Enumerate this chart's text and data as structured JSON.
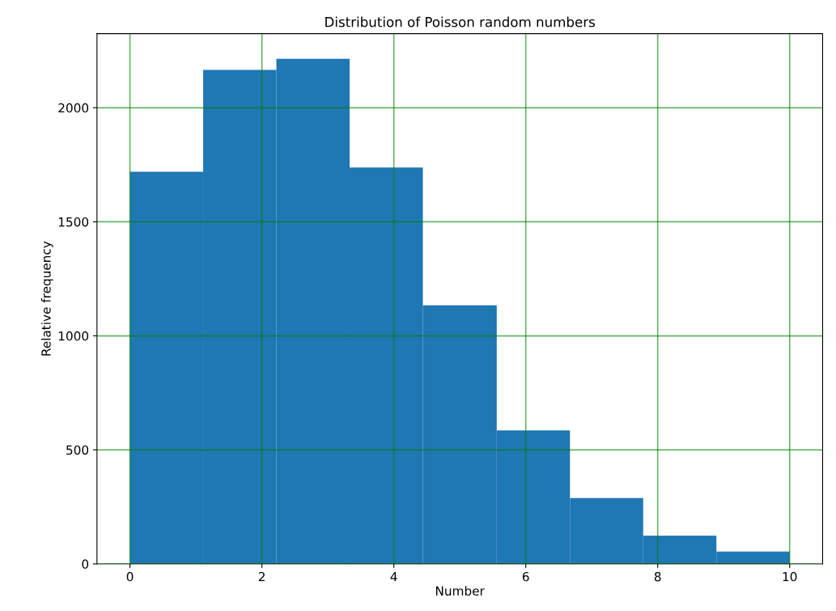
{
  "chart_data": {
    "type": "histogram",
    "title": "Distribution of Poisson random numbers",
    "xlabel": "Number",
    "ylabel": "Relative frequency",
    "bins": [
      0,
      1.11,
      2.22,
      3.33,
      4.44,
      5.56,
      6.67,
      7.78,
      8.89,
      10
    ],
    "values": [
      1719,
      2166,
      2215,
      1738,
      1134,
      586,
      289,
      124,
      54
    ],
    "color": "#1f77b4",
    "xlim": [
      -0.5,
      10.5
    ],
    "xticks": [
      0,
      2,
      4,
      6,
      8,
      10
    ],
    "ylim": [
      0,
      2325
    ],
    "yticks": [
      0,
      500,
      1000,
      1500,
      2000
    ],
    "grid": true
  }
}
